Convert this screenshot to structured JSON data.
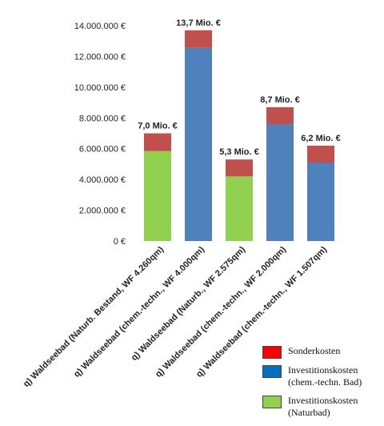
{
  "chart_data": {
    "type": "bar",
    "stacked": true,
    "categories": [
      "q) Waldseebad (Naturb. Bestand, WF 4.260qm)",
      "q) Waldseebad (chem.-techn., WF 4.000qm)",
      "q) Waldseebad (Naturb., WF 2.575qm)",
      "q) Waldseebad (chem.-techn., WF 2.000qm)",
      "q) Waldseebad (chem.-techn., WF 1.507qm)"
    ],
    "investment_values": [
      5850000,
      12550000,
      4200000,
      7600000,
      5100000
    ],
    "investment_type": [
      "Naturbad",
      "chem",
      "Naturbad",
      "chem",
      "chem"
    ],
    "special_costs": [
      1150000,
      1150000,
      1100000,
      1100000,
      1100000
    ],
    "totals_labels": [
      "7,0 Mio. €",
      "13,7 Mio. €",
      "5,3 Mio. €",
      "8,7 Mio. €",
      "6,2 Mio. €"
    ],
    "ylim": [
      0,
      14000000
    ],
    "yticks": [
      0,
      2000000,
      4000000,
      6000000,
      8000000,
      10000000,
      12000000,
      14000000
    ],
    "ytick_labels": [
      "0 €",
      "2.000.000 €",
      "4.000.000 €",
      "6.000.000 €",
      "8.000.000 €",
      "10.000.000 €",
      "12.000.000 €",
      "14.000.000 €"
    ],
    "grid": false,
    "legend_position": "bottom-right",
    "colors": {
      "special_bar": "#c0504d",
      "chem_bar": "#4f81bd",
      "natur_bar": "#92d050",
      "legend_special": "#ff0000",
      "legend_chem": "#0070c0",
      "legend_natur": "#92d050"
    }
  },
  "legend": {
    "items": [
      {
        "label": "Sonderkosten",
        "icon": "red-square"
      },
      {
        "label": "Investitionskosten\n(chem.-techn. Bad)",
        "icon": "blue-square"
      },
      {
        "label": "Investitionskosten\n(Naturbad)",
        "icon": "green-square"
      }
    ]
  }
}
